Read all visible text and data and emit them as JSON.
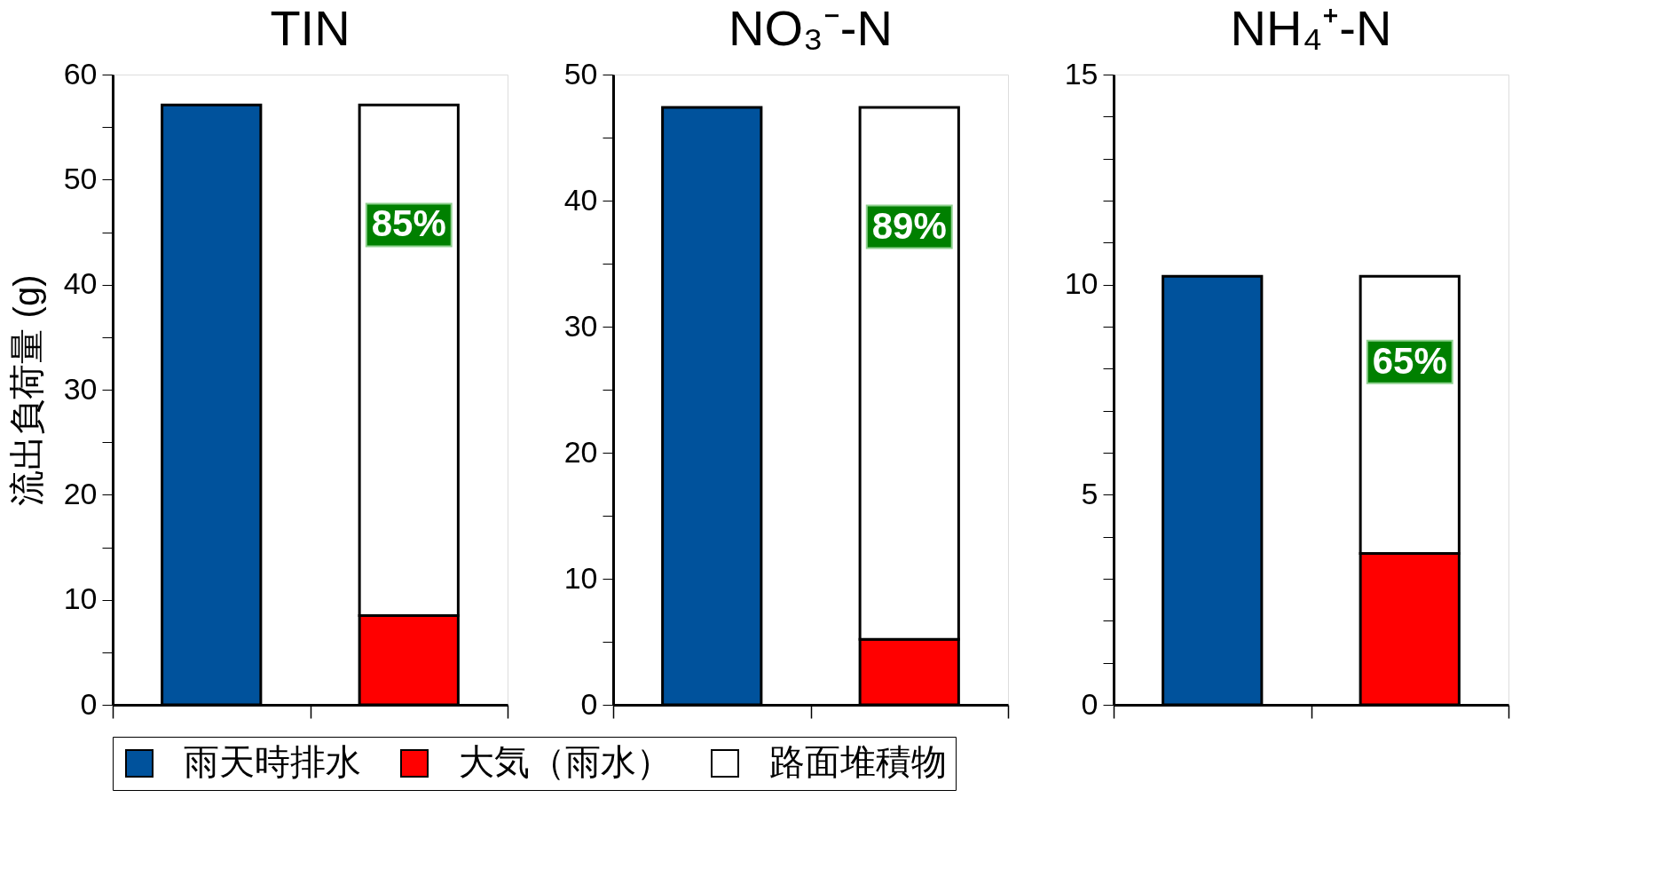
{
  "chart_data": [
    {
      "type": "bar",
      "title": "TIN",
      "ylabel": "流出負荷量 (g)",
      "categories": [
        null,
        null
      ],
      "stacked": true,
      "legend": "bottom",
      "grid": false,
      "ylim": [
        0,
        60
      ],
      "yticks": [
        0,
        {
          "value": 5,
          "label": null
        },
        10,
        {
          "value": 15,
          "label": null
        },
        20,
        {
          "value": 25,
          "label": null
        },
        30,
        {
          "value": 35,
          "label": null
        },
        40,
        {
          "value": 45,
          "label": null
        },
        50,
        {
          "value": 55,
          "label": null
        },
        60
      ],
      "series": [
        {
          "name": "雨天時排水",
          "color": "#00529c",
          "values": [
            57.1,
            null
          ]
        },
        {
          "name": "大気（雨水）",
          "color": "#ff0000",
          "values": [
            null,
            8.5
          ]
        },
        {
          "name": "路面堆積物",
          "color": "#ffffff",
          "values": [
            null,
            48.6
          ]
        }
      ],
      "annotations": [
        "85%"
      ]
    },
    {
      "type": "bar",
      "title": "NO₃⁻-N",
      "categories": [
        null,
        null
      ],
      "stacked": true,
      "ylim": [
        0,
        50
      ],
      "yticks": [
        0,
        {
          "value": 5,
          "label": null
        },
        10,
        {
          "value": 15,
          "label": null
        },
        20,
        {
          "value": 25,
          "label": null
        },
        30,
        {
          "value": 35,
          "label": null
        },
        40,
        {
          "value": 45,
          "label": null
        },
        50
      ],
      "series": [
        {
          "color": "#00529c",
          "values": [
            47.4,
            null
          ]
        },
        {
          "color": "#ff0000",
          "values": [
            null,
            5.2
          ]
        },
        {
          "color": "#ffffff",
          "values": [
            null,
            42.2
          ]
        }
      ],
      "annotations": [
        "89%"
      ]
    },
    {
      "type": "bar",
      "title": "NH₄⁺-N",
      "categories": [
        null,
        null
      ],
      "stacked": true,
      "ylim": [
        0,
        15
      ],
      "yticks": [
        0,
        {
          "value": 1,
          "label": null
        },
        {
          "value": 2,
          "label": null
        },
        {
          "value": 3,
          "label": null
        },
        {
          "value": 4,
          "label": null
        },
        5,
        {
          "value": 6,
          "label": null
        },
        {
          "value": 7,
          "label": null
        },
        {
          "value": 8,
          "label": null
        },
        {
          "value": 9,
          "label": null
        },
        10,
        {
          "value": 11,
          "label": null
        },
        {
          "value": 12,
          "label": null
        },
        {
          "value": 13,
          "label": null
        },
        {
          "value": 14,
          "label": null
        },
        15
      ],
      "series": [
        {
          "color": "#00529c",
          "values": [
            10.2,
            null
          ]
        },
        {
          "color": "#ff0000",
          "values": [
            null,
            3.6
          ]
        },
        {
          "color": "#ffffff",
          "values": [
            null,
            6.6
          ]
        }
      ],
      "annotations": [
        "65%"
      ]
    }
  ]
}
